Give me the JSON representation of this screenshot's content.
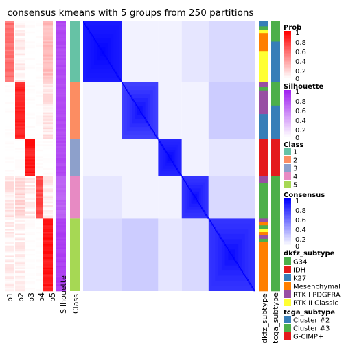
{
  "chart_data": {
    "type": "heatmap",
    "title": "consensus kmeans with 5 groups from 250 partitions",
    "n_samples": 160,
    "group_order": [
      1,
      2,
      3,
      4,
      5
    ],
    "group_sizes": [
      36,
      34,
      22,
      25,
      43
    ],
    "x_labels": {
      "prob": [
        "p1",
        "p2",
        "p3",
        "p4",
        "p5"
      ],
      "silhouette": "Silhouette",
      "class": "Class",
      "dkfz": "dkfz_subtype",
      "tcga": "tcga_subtype"
    },
    "legends": {
      "prob": {
        "title": "Prob",
        "ticks": [
          "1",
          "0.8",
          "0.6",
          "0.4",
          "0.2",
          "0"
        ],
        "low": "#ffffff",
        "high": "#ff0000"
      },
      "silhouette": {
        "title": "Silhouette",
        "ticks": [
          "1",
          "0.8",
          "0.6",
          "0.4",
          "0.2",
          "0"
        ],
        "low": "#ffffff",
        "high": "#a020f0"
      },
      "class": {
        "title": "Class",
        "items": [
          {
            "label": "1",
            "color": "#66c2a5"
          },
          {
            "label": "2",
            "color": "#fc8d62"
          },
          {
            "label": "3",
            "color": "#8da0cb"
          },
          {
            "label": "4",
            "color": "#e78ac3"
          },
          {
            "label": "5",
            "color": "#a6d854"
          }
        ]
      },
      "consensus": {
        "title": "Consensus",
        "ticks": [
          "1",
          "0.8",
          "0.6",
          "0.4",
          "0.2",
          "0"
        ],
        "low": "#ffffff",
        "high": "#0000ff"
      },
      "dkfz": {
        "title": "dkfz_subtype",
        "items": [
          {
            "label": "G34",
            "color": "#4daf4a"
          },
          {
            "label": "IDH",
            "color": "#e41a1c"
          },
          {
            "label": "K27",
            "color": "#377eb8"
          },
          {
            "label": "Mesenchymal",
            "color": "#ff7f00"
          },
          {
            "label": "RTK I PDGFRA",
            "color": "#984ea3"
          },
          {
            "label": "RTK II Classic",
            "color": "#ffff33"
          }
        ]
      },
      "tcga": {
        "title": "tcga_subtype",
        "items": [
          {
            "label": "Cluster #2",
            "color": "#377eb8"
          },
          {
            "label": "Cluster #3",
            "color": "#4daf4a"
          },
          {
            "label": "G-CIMP+",
            "color": "#e41a1c"
          }
        ]
      }
    },
    "prob_levels": [
      [
        0.55,
        0.05,
        0.0,
        0.0,
        0.25
      ],
      [
        0.0,
        0.85,
        0.0,
        0.0,
        0.1
      ],
      [
        0.0,
        0.0,
        0.9,
        0.0,
        0.0
      ],
      [
        0.1,
        0.15,
        0.05,
        0.7,
        0.05
      ],
      [
        0.05,
        0.05,
        0.0,
        0.0,
        0.9
      ]
    ],
    "silhouette_levels": [
      0.85,
      0.85,
      0.85,
      0.75,
      0.9
    ],
    "consensus_within": [
      0.9,
      0.75,
      0.85,
      0.8,
      0.8
    ],
    "consensus_between": [
      [
        1,
        0.05,
        0.05,
        0.1,
        0.15
      ],
      [
        0.05,
        1,
        0.05,
        0.05,
        0.2
      ],
      [
        0.05,
        0.05,
        1,
        0.05,
        0.1
      ],
      [
        0.1,
        0.05,
        0.05,
        1,
        0.15
      ],
      [
        0.15,
        0.2,
        0.1,
        0.15,
        1
      ]
    ],
    "dkfz_segments": [
      [
        "K27",
        3
      ],
      [
        "G34",
        2
      ],
      [
        "RTK II Classic",
        2
      ],
      [
        "Mesenchymal",
        11
      ],
      [
        "RTK II Classic",
        18
      ],
      [
        "RTK I PDGFRA",
        3
      ],
      [
        "G34",
        2
      ],
      [
        "RTK I PDGFRA",
        14
      ],
      [
        "K27",
        15
      ],
      [
        "IDH",
        22
      ],
      [
        "RTK I PDGFRA",
        4
      ],
      [
        "G34",
        21
      ],
      [
        "RTK I PDGFRA",
        2
      ],
      [
        "Mesenchymal",
        2
      ],
      [
        "G34",
        2
      ],
      [
        "RTK II Classic",
        2
      ],
      [
        "Mesenchymal",
        2
      ],
      [
        "RTK I PDGFRA",
        2
      ],
      [
        "G34",
        2
      ],
      [
        "Mesenchymal",
        29
      ]
    ],
    "tcga_segments": [
      [
        "Cluster #3",
        12
      ],
      [
        "Cluster #2",
        24
      ],
      [
        "Cluster #3",
        14
      ],
      [
        "Cluster #2",
        20
      ],
      [
        "G-CIMP+",
        22
      ],
      [
        "Cluster #3",
        25
      ],
      [
        "Cluster #3",
        43
      ]
    ]
  }
}
